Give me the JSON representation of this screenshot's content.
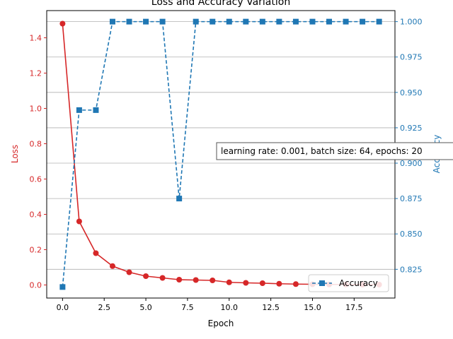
{
  "chart_data": {
    "type": "line",
    "title": "Loss and Accuracy Variation",
    "xlabel": "Epoch",
    "ylabel_left": "Loss",
    "ylabel_right": "Accuracy",
    "xlim": [
      -0.95,
      19.95
    ],
    "ylim_left": [
      -0.074,
      1.554
    ],
    "ylim_right": [
      0.8047,
      1.0078
    ],
    "x_ticks": [
      0.0,
      2.5,
      5.0,
      7.5,
      10.0,
      12.5,
      15.0,
      17.5
    ],
    "x_tick_labels": [
      "0.0",
      "2.5",
      "5.0",
      "7.5",
      "10.0",
      "12.5",
      "15.0",
      "17.5"
    ],
    "y_left_ticks": [
      0.0,
      0.2,
      0.4,
      0.6,
      0.8,
      1.0,
      1.2,
      1.4
    ],
    "y_left_tick_labels": [
      "0.0",
      "0.2",
      "0.4",
      "0.6",
      "0.8",
      "1.0",
      "1.2",
      "1.4"
    ],
    "y_right_ticks": [
      0.825,
      0.85,
      0.875,
      0.9,
      0.925,
      0.95,
      0.975,
      1.0
    ],
    "y_right_tick_labels": [
      "0.825",
      "0.850",
      "0.875",
      "0.900",
      "0.925",
      "0.950",
      "0.975",
      "1.000"
    ],
    "grid": "horizontal lines at right-axis ticks",
    "legend_position": "lower-right",
    "annotation": "learning rate: 0.001, batch size: 64, epochs: 20",
    "x": [
      0,
      1,
      2,
      3,
      4,
      5,
      6,
      7,
      8,
      9,
      10,
      11,
      12,
      13,
      14,
      15,
      16,
      17,
      18,
      19
    ],
    "series": [
      {
        "axis": "left",
        "color": "#d62728",
        "marker": "circle",
        "linestyle": "solid",
        "values": [
          1.48,
          0.36,
          0.18,
          0.107,
          0.072,
          0.05,
          0.04,
          0.03,
          0.028,
          0.026,
          0.015,
          0.012,
          0.01,
          0.007,
          0.005,
          0.004,
          0.003,
          0.003,
          0.002,
          0.002
        ]
      },
      {
        "name": "Accuracy",
        "axis": "right",
        "color": "#1f77b4",
        "marker": "square",
        "linestyle": "dashed",
        "values": [
          0.8125,
          0.9375,
          0.9375,
          1.0,
          1.0,
          1.0,
          1.0,
          0.875,
          1.0,
          1.0,
          1.0,
          1.0,
          1.0,
          1.0,
          1.0,
          1.0,
          1.0,
          1.0,
          1.0,
          1.0
        ]
      }
    ]
  },
  "colors": {
    "loss": "#d62728",
    "accuracy": "#1f77b4",
    "grid": "#b0b0b0"
  }
}
